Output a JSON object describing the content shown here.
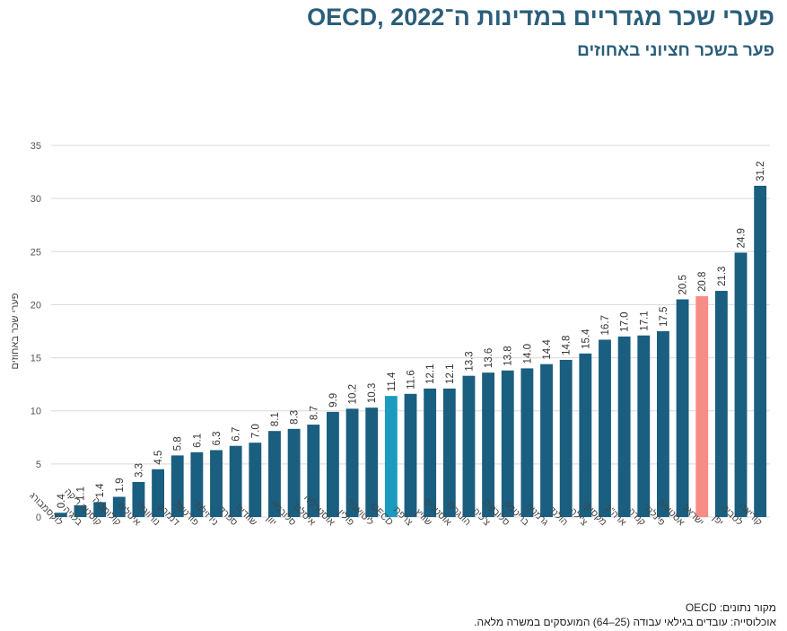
{
  "header": {
    "title": "פערי שכר מגדריים במדינות ה־OECD, 2022",
    "subtitle": "פער בשכר חציוני באחוזים"
  },
  "footer": {
    "source": "מקור נתונים: OECD",
    "population": "אוכלוסייה: עובדים בגילאי עבודה (25–64) המועסקים במשרה מלאה."
  },
  "colors": {
    "default_bar": "#1a5e80",
    "oecd_bar": "#1a9bbf",
    "israel_bar": "#f78b86",
    "title": "#2b5e7a",
    "grid": "#d9d9d9"
  },
  "chart_data": {
    "type": "bar",
    "title": "פערי שכר מגדריים במדינות ה־OECD, 2022",
    "subtitle": "פער בשכר חציוני באחוזים",
    "xlabel": "",
    "ylabel": "פערי שכר באחוזים",
    "ylim": [
      0,
      35
    ],
    "yticks": [
      0,
      5,
      10,
      15,
      20,
      25,
      30,
      35
    ],
    "grid": true,
    "categories": [
      "לוקסמבורג",
      "בלגיה",
      "קוסטה ריקה",
      "קולומביה",
      "איטליה",
      "נורווגיה",
      "דנמרק",
      "פורטוגל",
      "ניו זילנד",
      "ספרד",
      "שוודיה",
      "יוון",
      "סלובניה",
      "איסלנד",
      "אוסטרליה",
      "פולין",
      "ליטואניה",
      "OECD",
      "צרפת",
      "שוויץ",
      "אוסטריה",
      "הונגריה",
      "צ'כיה",
      "סלובקיה",
      "בריטניה",
      "גרמניה",
      "הולנד",
      "צ'ילה",
      "מקסיקו",
      "ארה\"ב",
      "קנדה",
      "פינלנד",
      "אסטוניה",
      "ישראל",
      "יפן",
      "לטביה",
      "קוריאה"
    ],
    "values": [
      0.4,
      1.1,
      1.4,
      1.9,
      3.3,
      4.5,
      5.8,
      6.1,
      6.3,
      6.7,
      7.0,
      8.1,
      8.3,
      8.7,
      9.9,
      10.2,
      10.3,
      11.4,
      11.6,
      12.1,
      12.1,
      13.3,
      13.6,
      13.8,
      14.0,
      14.4,
      14.8,
      15.4,
      16.7,
      17.0,
      17.1,
      17.5,
      20.5,
      20.8,
      21.3,
      24.9,
      31.2
    ],
    "highlights": {
      "OECD": "oecd_bar",
      "ישראל": "israel_bar"
    }
  }
}
